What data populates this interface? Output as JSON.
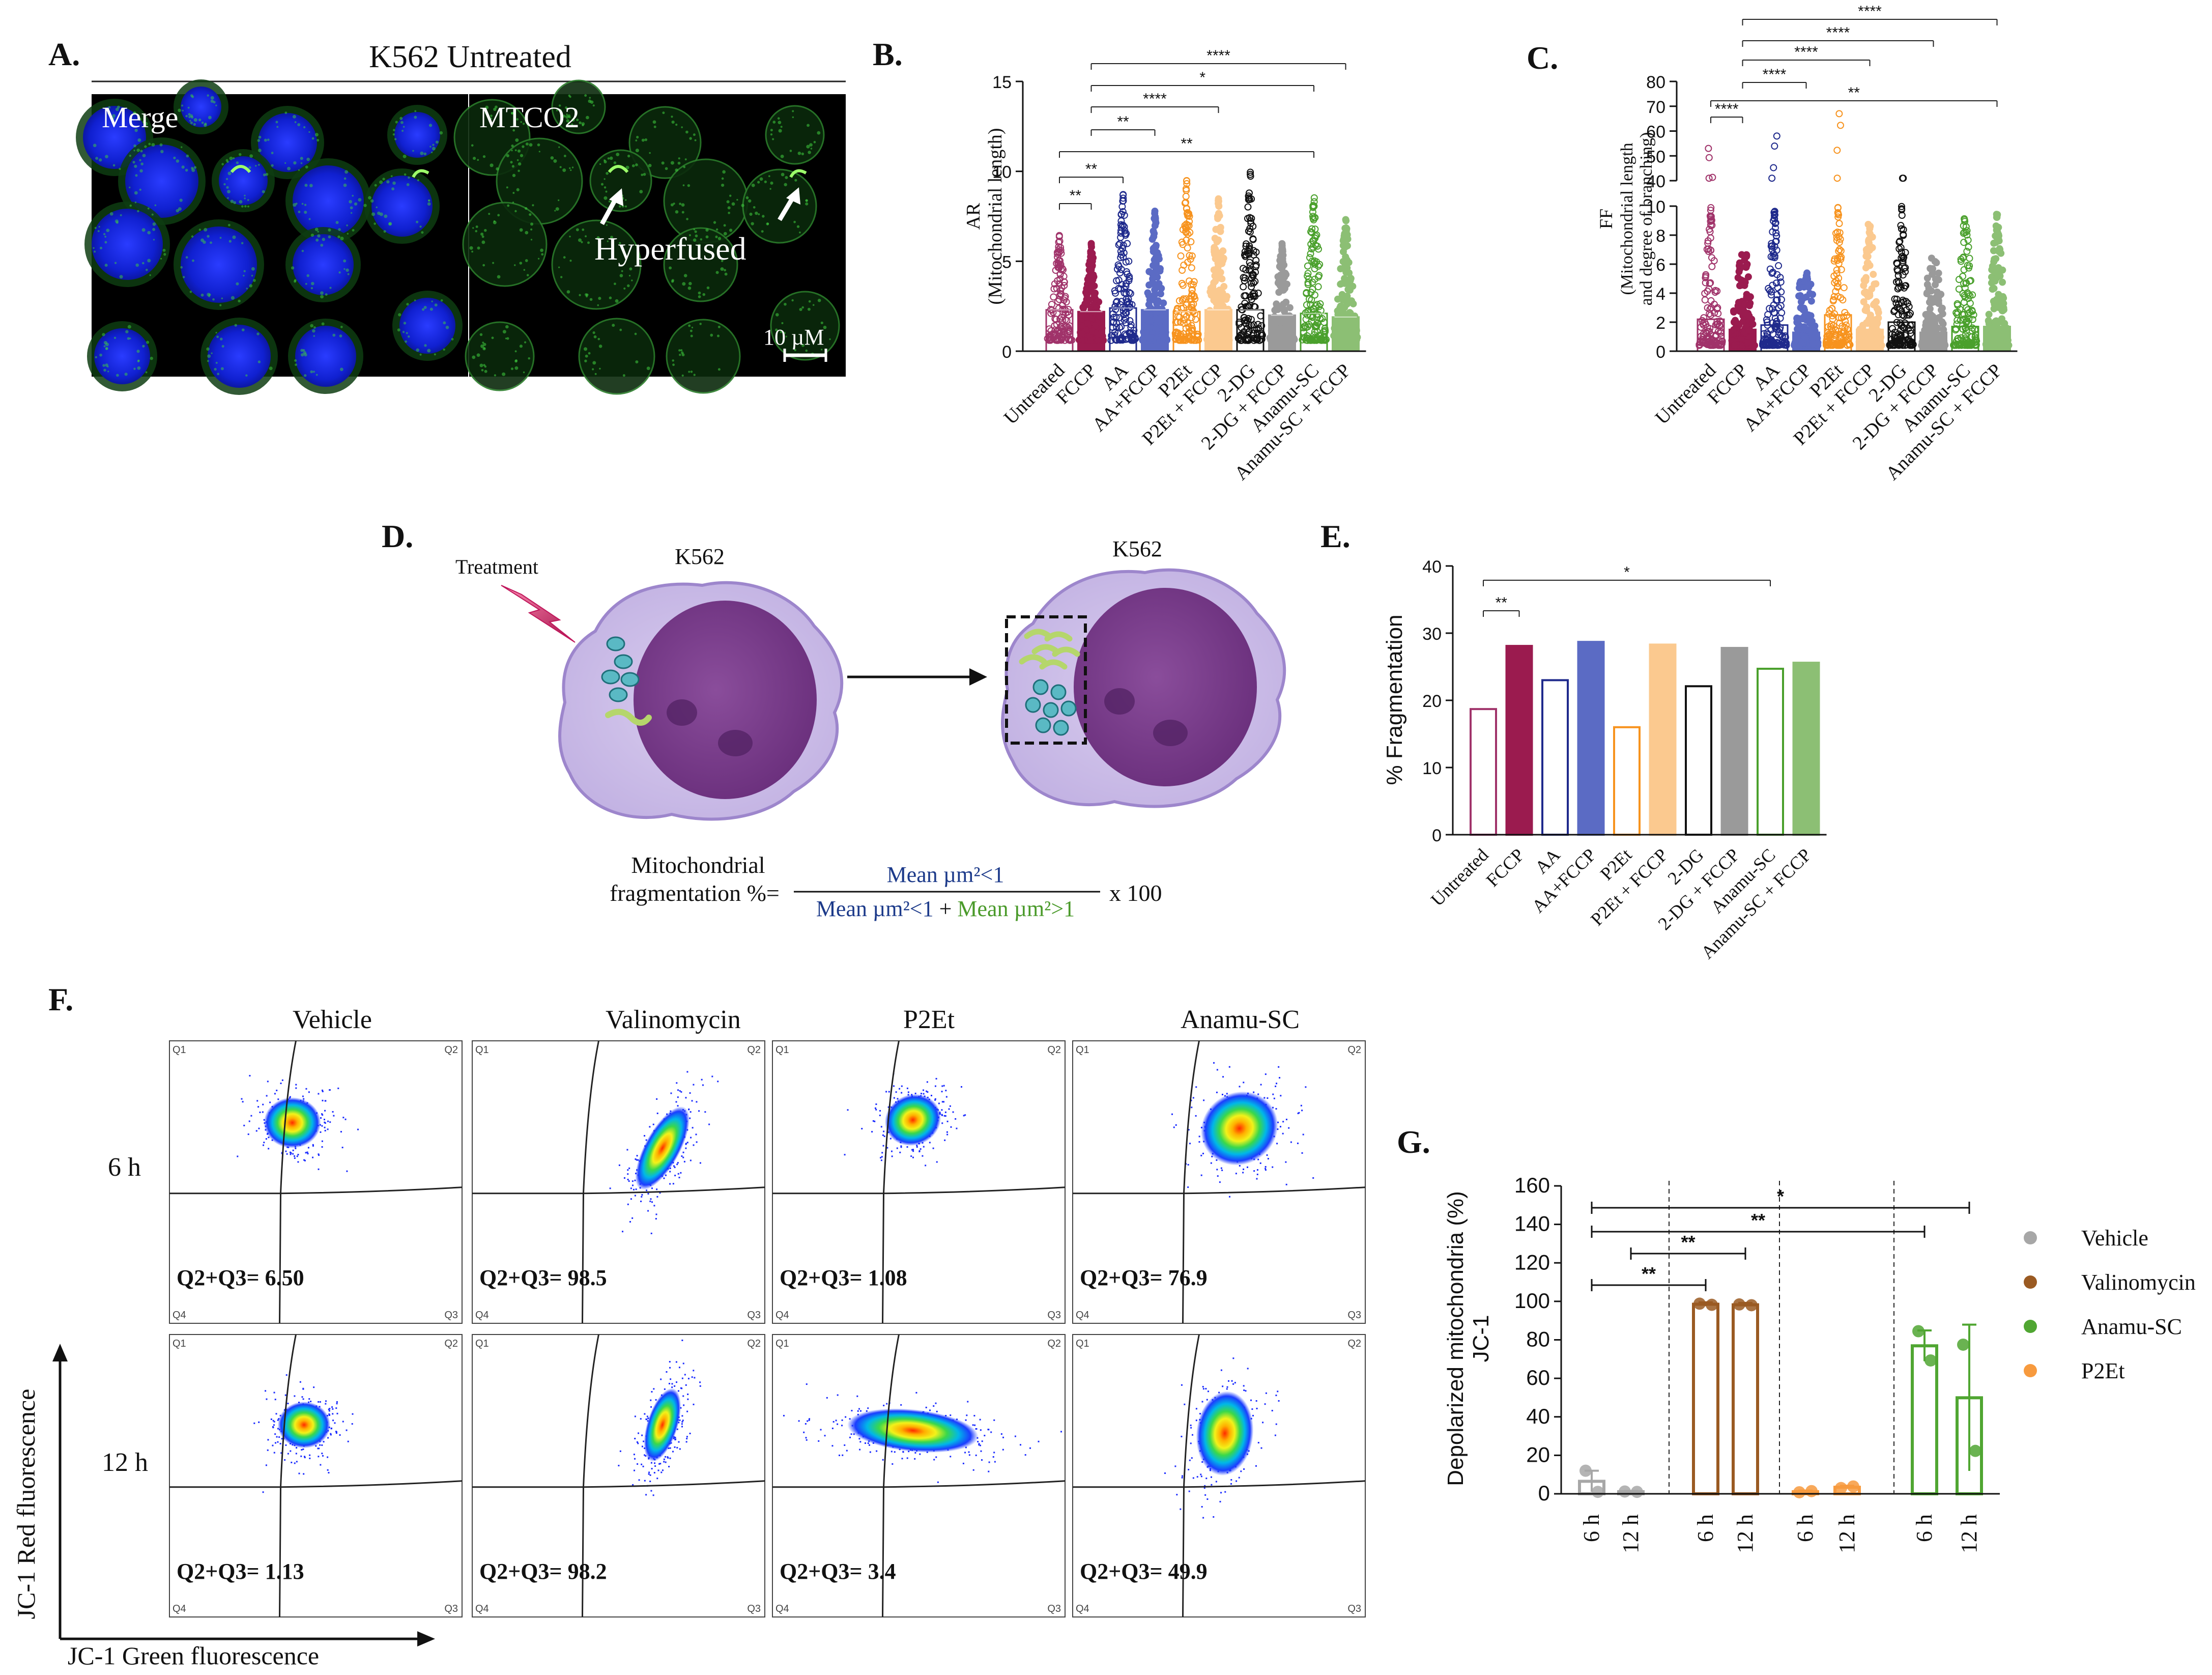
{
  "panels": {
    "A": {
      "letter": "A.",
      "title": "K562 Untreated",
      "label_merge": "Merge",
      "label_mtco2": "MTCO2",
      "annotation": "Hyperfused",
      "scale_bar": "10 µM"
    },
    "B": {
      "letter": "B."
    },
    "C": {
      "letter": "C."
    },
    "D": {
      "letter": "D.",
      "treatment": "Treatment",
      "cell1": "K562",
      "cell2": "K562",
      "formula_left_1": "Mitochondrial",
      "formula_left_2": "fragmentation %=",
      "numerator": "Mean µm²<1",
      "denom_a": "Mean µm²<1",
      "denom_plus": " + ",
      "denom_b": "Mean µm²>1",
      "times": "x 100"
    },
    "E": {
      "letter": "E."
    },
    "F": {
      "letter": "F.",
      "columns": [
        "Vehicle",
        "Valinomycin",
        "P2Et",
        "Anamu-SC"
      ],
      "rows": [
        "6 h",
        "12 h"
      ],
      "values": [
        [
          "Q2+Q3= 6.50",
          "Q2+Q3= 98.5",
          "Q2+Q3= 1.08",
          "Q2+Q3= 76.9"
        ],
        [
          "Q2+Q3=  1.13",
          "Q2+Q3=  98.2",
          "Q2+Q3=  3.4",
          "Q2+Q3=  49.9"
        ]
      ],
      "quadrants": [
        "Q1",
        "Q2",
        "Q3",
        "Q4"
      ],
      "y_axis": "JC-1 Red fluorescence",
      "x_axis": "JC-1 Green fluorescence"
    },
    "G": {
      "letter": "G."
    }
  },
  "colors": {
    "untreated": "#a0336a",
    "fccp": "#9b1b4f",
    "aa": "#1f2a8c",
    "aafccp": "#5b6bc4",
    "p2et": "#f7931e",
    "p2etfccp": "#fbc98f",
    "dg": "#111111",
    "dgfccp": "#9a9a9a",
    "anamu": "#4aa02c",
    "anamufccp": "#8cbf74",
    "vehicle": "#a7a7a7",
    "valinomycin": "#9a5a22",
    "green_stat": "#50a632",
    "orange_stat": "#f79a3e"
  },
  "chart_data": [
    {
      "panel": "B",
      "type": "bar",
      "ylabel": "AR (Mitochondrial length)",
      "ylim": [
        0,
        15
      ],
      "yticks": [
        "0",
        "5",
        "10",
        "15"
      ],
      "categories": [
        "Untreated",
        "FCCP",
        "AA",
        "AA+FCCP",
        "P2Et",
        "P2Et + FCCP",
        "2-DG",
        "2-DG + FCCP",
        "Anamu-SC",
        "Anamu-SC + FCCP"
      ],
      "values": [
        2.3,
        2.2,
        2.4,
        2.3,
        2.2,
        2.3,
        2.3,
        2.0,
        2.1,
        1.9
      ],
      "point_max": [
        6.5,
        6.0,
        8.8,
        7.8,
        9.5,
        8.5,
        10.0,
        6.0,
        8.8,
        7.5
      ],
      "significance": [
        {
          "from": "Untreated",
          "to": "FCCP",
          "label": "**"
        },
        {
          "from": "Untreated",
          "to": "AA",
          "label": "**"
        },
        {
          "from": "Untreated",
          "to": "Anamu-SC",
          "label": "**"
        },
        {
          "from": "FCCP",
          "to": "AA+FCCP",
          "label": "**"
        },
        {
          "from": "FCCP",
          "to": "P2Et + FCCP",
          "label": "****"
        },
        {
          "from": "FCCP",
          "to": "Anamu-SC",
          "label": "*"
        },
        {
          "from": "FCCP",
          "to": "Anamu-SC + FCCP",
          "label": "****"
        }
      ]
    },
    {
      "panel": "C",
      "type": "bar",
      "ylabel": "FF (Mitochondrial length and degree of branching)",
      "ylim": [
        0,
        80
      ],
      "axis_break": [
        10,
        40
      ],
      "yticks": [
        "0",
        "2",
        "4",
        "6",
        "8",
        "10",
        "40",
        "50",
        "60",
        "70",
        "80"
      ],
      "categories": [
        "Untreated",
        "FCCP",
        "AA",
        "AA+FCCP",
        "P2Et",
        "P2Et + FCCP",
        "2-DG",
        "2-DG + FCCP",
        "Anamu-SC",
        "Anamu-SC + FCCP"
      ],
      "values": [
        2.2,
        1.5,
        1.8,
        1.3,
        2.5,
        1.5,
        2.0,
        1.3,
        1.7,
        1.7
      ],
      "point_max": [
        53,
        7,
        58,
        5.5,
        67,
        9,
        41,
        6.5,
        9.5,
        9.5
      ],
      "significance": [
        {
          "from": "Untreated",
          "to": "FCCP",
          "label": "****"
        },
        {
          "from": "Untreated",
          "to": "Anamu-SC + FCCP",
          "label": "**"
        },
        {
          "from": "FCCP",
          "to": "AA+FCCP",
          "label": "****"
        },
        {
          "from": "FCCP",
          "to": "P2Et + FCCP",
          "label": "****"
        },
        {
          "from": "FCCP",
          "to": "2-DG + FCCP",
          "label": "****"
        },
        {
          "from": "FCCP",
          "to": "Anamu-SC + FCCP",
          "label": "****"
        }
      ]
    },
    {
      "panel": "E",
      "type": "bar",
      "ylabel": "% Fragmentation",
      "ylim": [
        0,
        40
      ],
      "yticks": [
        "0",
        "10",
        "20",
        "30",
        "40"
      ],
      "categories": [
        "Untreated",
        "FCCP",
        "AA",
        "AA+FCCP",
        "P2Et",
        "P2Et + FCCP",
        "2-DG",
        "2-DG + FCCP",
        "Anamu-SC",
        "Anamu-SC + FCCP"
      ],
      "values": [
        18.7,
        28.1,
        23.0,
        28.7,
        16.0,
        28.3,
        22.1,
        27.8,
        24.7,
        25.6
      ],
      "significance": [
        {
          "from": "Untreated",
          "to": "FCCP",
          "label": "**"
        },
        {
          "from": "Untreated",
          "to": "Anamu-SC",
          "label": "*"
        }
      ]
    },
    {
      "panel": "G",
      "type": "bar",
      "ylabel": "Depolarized mitochondria (%) JC-1",
      "ylim": [
        0,
        160
      ],
      "yticks": [
        "0",
        "20",
        "40",
        "60",
        "80",
        "100",
        "120",
        "140",
        "160"
      ],
      "categories": [
        "6 h",
        "12 h",
        "6 h",
        "12 h",
        "6 h",
        "12 h",
        "6 h",
        "12 h"
      ],
      "groups": [
        "Vehicle",
        "Valinomycin",
        "P2Et",
        "Anamu-SC"
      ],
      "values": [
        6.5,
        1.1,
        98.5,
        98.2,
        1.1,
        3.4,
        76.9,
        49.9
      ],
      "errors": [
        5.5,
        0.4,
        1.0,
        1.0,
        0.6,
        0.8,
        8.0,
        38.0
      ],
      "points": [
        [
          12,
          1
        ],
        [
          1.2,
          1.0
        ],
        [
          98.8,
          98.2
        ],
        [
          98.4,
          98.0
        ],
        [
          0.8,
          1.4
        ],
        [
          3.0,
          3.8
        ],
        [
          84.5,
          69.3
        ],
        [
          77.5,
          22.3
        ]
      ],
      "legend": [
        "Vehicle",
        "Valinomycin",
        "Anamu-SC",
        "P2Et"
      ],
      "significance": [
        {
          "from": 0,
          "to": 2,
          "label": "**"
        },
        {
          "from": 1,
          "to": 3,
          "label": "**"
        },
        {
          "from": 0,
          "to": 6,
          "label": "**"
        },
        {
          "from": 0,
          "to": 7,
          "label": "*"
        }
      ]
    }
  ]
}
